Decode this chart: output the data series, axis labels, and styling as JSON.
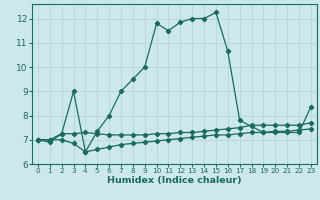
{
  "xlabel": "Humidex (Indice chaleur)",
  "bg_color": "#cce8ec",
  "grid_color": "#b8d8dc",
  "line_color": "#1a6b5a",
  "xlim": [
    -0.5,
    23.5
  ],
  "ylim": [
    6.0,
    12.6
  ],
  "yticks": [
    6,
    7,
    8,
    9,
    10,
    11,
    12
  ],
  "xticks": [
    0,
    1,
    2,
    3,
    4,
    5,
    6,
    7,
    8,
    9,
    10,
    11,
    12,
    13,
    14,
    15,
    16,
    17,
    18,
    19,
    20,
    21,
    22,
    23
  ],
  "series1_x": [
    0,
    1,
    2,
    3,
    4,
    5,
    6,
    7,
    8,
    9,
    10,
    11,
    12,
    13,
    14,
    15,
    16,
    17,
    18,
    19,
    20,
    21,
    22,
    23
  ],
  "series1_y": [
    7.0,
    6.9,
    7.25,
    9.0,
    6.5,
    7.35,
    8.0,
    9.0,
    9.5,
    10.0,
    11.8,
    11.5,
    11.85,
    12.0,
    12.0,
    12.25,
    10.65,
    7.8,
    7.55,
    7.3,
    7.3,
    7.3,
    7.3,
    8.35
  ],
  "series2_x": [
    0,
    1,
    2,
    3,
    4,
    5,
    6,
    7,
    8,
    9,
    10,
    11,
    12,
    13,
    14,
    15,
    16,
    17,
    18,
    19,
    20,
    21,
    22,
    23
  ],
  "series2_y": [
    7.0,
    7.0,
    7.25,
    7.25,
    7.3,
    7.25,
    7.2,
    7.2,
    7.2,
    7.2,
    7.25,
    7.25,
    7.3,
    7.3,
    7.35,
    7.4,
    7.45,
    7.5,
    7.6,
    7.6,
    7.6,
    7.6,
    7.6,
    7.7
  ],
  "series3_x": [
    0,
    1,
    2,
    3,
    4,
    5,
    6,
    7,
    8,
    9,
    10,
    11,
    12,
    13,
    14,
    15,
    16,
    17,
    18,
    19,
    20,
    21,
    22,
    23
  ],
  "series3_y": [
    7.0,
    7.0,
    7.0,
    6.85,
    6.5,
    6.6,
    6.7,
    6.8,
    6.85,
    6.9,
    6.95,
    7.0,
    7.05,
    7.1,
    7.15,
    7.2,
    7.2,
    7.25,
    7.3,
    7.3,
    7.35,
    7.35,
    7.4,
    7.45
  ],
  "marker": "D",
  "markersize": 2.2,
  "linewidth": 0.9,
  "tick_fontsize_x": 5.2,
  "tick_fontsize_y": 6.5,
  "xlabel_fontsize": 6.8
}
